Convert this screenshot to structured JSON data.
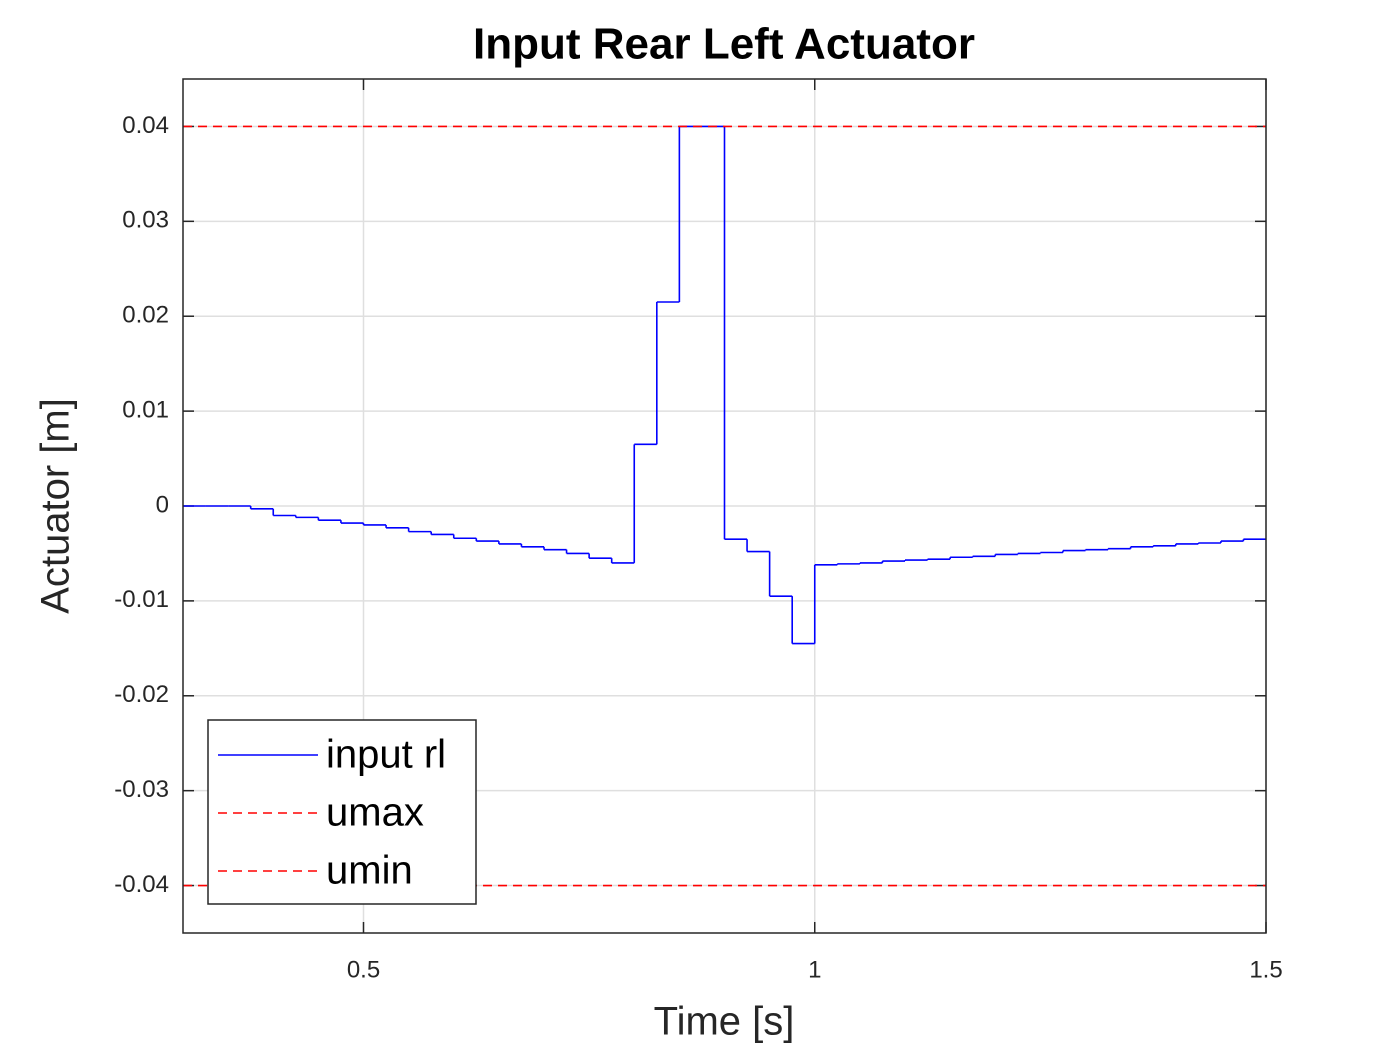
{
  "chart_data": {
    "type": "line",
    "title": "Input Rear Left Actuator",
    "x_label": "Time [s]",
    "y_label": "Actuator [m]",
    "xlim": [
      0.3,
      1.5
    ],
    "xticks": [
      0.5,
      1,
      1.5
    ],
    "ylim": [
      -0.045,
      0.045
    ],
    "yticks": [
      -0.04,
      -0.03,
      -0.02,
      -0.01,
      0,
      0.01,
      0.02,
      0.03,
      0.04
    ],
    "grid": true,
    "legend": "lower left",
    "series": [
      {
        "name": "input rl",
        "color": "#0000ff",
        "line_style": "solid",
        "drawstyle": "steps",
        "x": [
          0.3,
          0.325,
          0.35,
          0.375,
          0.4,
          0.425,
          0.45,
          0.475,
          0.5,
          0.525,
          0.55,
          0.575,
          0.6,
          0.625,
          0.65,
          0.675,
          0.7,
          0.725,
          0.75,
          0.775,
          0.8,
          0.825,
          0.85,
          0.875,
          0.9,
          0.925,
          0.95,
          0.975,
          1.0,
          1.025,
          1.05,
          1.075,
          1.1,
          1.125,
          1.15,
          1.175,
          1.2,
          1.225,
          1.25,
          1.275,
          1.3,
          1.325,
          1.35,
          1.375,
          1.4,
          1.425,
          1.45,
          1.475
        ],
        "values": [
          0,
          0,
          0,
          -0.0003,
          -0.001,
          -0.0012,
          -0.0015,
          -0.0018,
          -0.002,
          -0.0023,
          -0.0027,
          -0.003,
          -0.0034,
          -0.0037,
          -0.004,
          -0.0043,
          -0.0046,
          -0.005,
          -0.0055,
          -0.006,
          0.0065,
          0.0215,
          0.04,
          0.04,
          -0.0035,
          -0.0048,
          -0.0095,
          -0.0145,
          -0.0062,
          -0.0061,
          -0.006,
          -0.0058,
          -0.0057,
          -0.0056,
          -0.0054,
          -0.0053,
          -0.0051,
          -0.005,
          -0.0049,
          -0.0047,
          -0.0046,
          -0.0045,
          -0.0043,
          -0.0042,
          -0.004,
          -0.0039,
          -0.0037,
          -0.0035
        ]
      },
      {
        "name": "umax",
        "color": "#ff0000",
        "line_style": "dashed",
        "x": [
          0.3,
          1.5
        ],
        "values": [
          0.04,
          0.04
        ]
      },
      {
        "name": "umin",
        "color": "#ff0000",
        "line_style": "dashed",
        "x": [
          0.3,
          1.5
        ],
        "values": [
          -0.04,
          -0.04
        ]
      }
    ]
  }
}
